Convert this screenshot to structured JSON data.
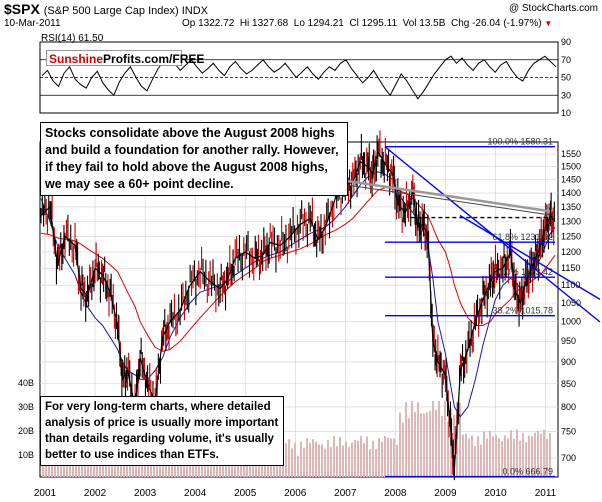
{
  "header": {
    "symbol": "$SPX",
    "name": "(S&P 500 Large Cap Index) INDX",
    "date": "10-Mar-2011",
    "open": "Op 1322.72",
    "high": "Hi 1327.68",
    "low": "Lo 1294.21",
    "close": "Cl 1295.11",
    "volume": "Vol 13.5B",
    "change": "Chg -26.04 (-1.97%)",
    "change_arrow": "▼",
    "copyright": "@ StockCharts.com",
    "rsi_label": "RSI(14) 61.50"
  },
  "logo": {
    "part1": "Sunshine",
    "part2": "Profits.com/FREE"
  },
  "annotations": {
    "note1": "Stocks consolidate above the August 2008 highs and build a foundation for another rally. However, if they fail to hold above the August 2008 highs, we may see a 60+ point decline.",
    "note2": "For very long-term charts, where detailed analysis of price is usually more important than details regarding volume, it's usually better to use indices than ETFs."
  },
  "colors": {
    "price": "#000000",
    "down_bar": "#cc0000",
    "ma_long": "#e00000",
    "ma_short": "#1a1aa0",
    "trend": "#0000ff",
    "volume": "#dfb6b6",
    "grid": "#cfcfcf"
  },
  "chart_data": [
    {
      "type": "line",
      "panel": "rsi",
      "series_label": "RSI(14) 61.50",
      "ylim": [
        10,
        90
      ],
      "yticks": [
        10,
        30,
        50,
        70,
        90
      ],
      "reference_lines": [
        30,
        50,
        70
      ],
      "values": [
        52,
        58,
        46,
        40,
        55,
        62,
        48,
        42,
        38,
        50,
        57,
        44,
        36,
        30,
        45,
        55,
        62,
        50,
        40,
        35,
        48,
        60,
        68,
        72,
        66,
        58,
        64,
        70,
        62,
        55,
        60,
        66,
        58,
        52,
        62,
        68,
        60,
        54,
        58,
        64,
        70,
        62,
        56,
        60,
        66,
        58,
        50,
        56,
        62,
        54,
        48,
        56,
        62,
        58,
        66,
        70,
        60,
        52,
        44,
        50,
        58,
        48,
        38,
        30,
        42,
        54,
        46,
        36,
        26,
        34,
        44,
        54,
        62,
        70,
        74,
        66,
        72,
        64,
        58,
        66,
        70,
        62,
        56,
        64,
        68,
        58,
        50,
        46,
        58,
        66,
        70,
        74,
        68,
        62
      ]
    },
    {
      "type": "line",
      "panel": "price",
      "title": "$SPX (S&P 500 Large Cap Index) INDX",
      "x_range": [
        2000.9,
        2011.25
      ],
      "xticks": [
        "2001",
        "2002",
        "2003",
        "2004",
        "2005",
        "2006",
        "2007",
        "2008",
        "2009",
        "2010",
        "2011"
      ],
      "ylim": [
        666,
        1600
      ],
      "yticks": [
        700,
        750,
        800,
        850,
        900,
        950,
        1000,
        1050,
        1100,
        1150,
        1200,
        1250,
        1300,
        1350,
        1400,
        1450,
        1500,
        1550
      ],
      "y_scale": "log",
      "x": [
        2000.92,
        2001.1,
        2001.25,
        2001.4,
        2001.6,
        2001.72,
        2001.85,
        2002.0,
        2002.15,
        2002.3,
        2002.45,
        2002.55,
        2002.65,
        2002.8,
        2002.9,
        2003.05,
        2003.2,
        2003.35,
        2003.5,
        2003.7,
        2003.9,
        2004.1,
        2004.3,
        2004.5,
        2004.65,
        2004.8,
        2005.0,
        2005.2,
        2005.35,
        2005.5,
        2005.7,
        2005.9,
        2006.1,
        2006.3,
        2006.45,
        2006.6,
        2006.8,
        2007.0,
        2007.15,
        2007.3,
        2007.45,
        2007.55,
        2007.65,
        2007.8,
        2007.95,
        2008.05,
        2008.2,
        2008.35,
        2008.45,
        2008.55,
        2008.65,
        2008.75,
        2008.85,
        2009.0,
        2009.1,
        2009.18,
        2009.3,
        2009.45,
        2009.6,
        2009.75,
        2009.9,
        2010.0,
        2010.15,
        2010.3,
        2010.4,
        2010.5,
        2010.6,
        2010.7,
        2010.8,
        2010.9,
        2011.0,
        2011.1,
        2011.19
      ],
      "values": [
        1320,
        1350,
        1160,
        1250,
        1220,
        1090,
        1070,
        1150,
        1130,
        1080,
        990,
        860,
        880,
        800,
        910,
        850,
        810,
        960,
        1000,
        1030,
        1100,
        1140,
        1110,
        1090,
        1120,
        1180,
        1200,
        1180,
        1190,
        1230,
        1220,
        1250,
        1290,
        1310,
        1240,
        1280,
        1380,
        1430,
        1440,
        1520,
        1500,
        1470,
        1560,
        1510,
        1470,
        1360,
        1330,
        1400,
        1280,
        1290,
        1250,
        950,
        900,
        870,
        760,
        680,
        880,
        930,
        1000,
        1060,
        1110,
        1140,
        1150,
        1200,
        1080,
        1050,
        1110,
        1140,
        1180,
        1220,
        1280,
        1320,
        1300
      ],
      "ma_short": [
        1380,
        1300,
        1220,
        1180,
        1130,
        1080,
        1040,
        1010,
        990,
        960,
        930,
        900,
        880,
        870,
        860,
        860,
        880,
        910,
        960,
        1010,
        1050,
        1080,
        1090,
        1100,
        1110,
        1130,
        1150,
        1170,
        1180,
        1190,
        1200,
        1220,
        1240,
        1260,
        1270,
        1280,
        1310,
        1350,
        1390,
        1430,
        1460,
        1470,
        1480,
        1470,
        1450,
        1400,
        1360,
        1330,
        1300,
        1270,
        1220,
        1120,
        1000,
        920,
        850,
        800,
        780,
        800,
        860,
        940,
        1010,
        1060,
        1100,
        1120,
        1110,
        1090,
        1100,
        1120,
        1150,
        1180,
        1220,
        1260,
        1280
      ],
      "ma_long": [
        1260,
        1255,
        1245,
        1240,
        1235,
        1225,
        1210,
        1195,
        1180,
        1160,
        1140,
        1110,
        1080,
        1040,
        1000,
        965,
        935,
        925,
        930,
        950,
        980,
        1010,
        1040,
        1070,
        1090,
        1110,
        1130,
        1150,
        1170,
        1180,
        1190,
        1200,
        1210,
        1225,
        1240,
        1255,
        1270,
        1290,
        1310,
        1340,
        1370,
        1390,
        1410,
        1420,
        1420,
        1410,
        1400,
        1380,
        1360,
        1340,
        1320,
        1280,
        1240,
        1200,
        1150,
        1100,
        1050,
        1010,
        990,
        990,
        1000,
        1020,
        1040,
        1060,
        1080,
        1090,
        1100,
        1110,
        1120,
        1130,
        1150,
        1170,
        1190
      ],
      "fibonacci_levels": [
        {
          "label": "100.0% 1580.31",
          "value": 1580.31
        },
        {
          "label": "61.8% 1231.02",
          "value": 1231.02
        },
        {
          "label": "50.0% 1123.42",
          "value": 1123.42
        },
        {
          "label": "38.2% 1015.78",
          "value": 1015.78
        },
        {
          "label": "0.0% 666.79",
          "value": 666.79
        }
      ],
      "reference_line": 1313,
      "volume_axis_labels": [
        "40B",
        "30B",
        "20B",
        "10B"
      ],
      "volume_ylim": [
        0,
        40
      ]
    }
  ]
}
